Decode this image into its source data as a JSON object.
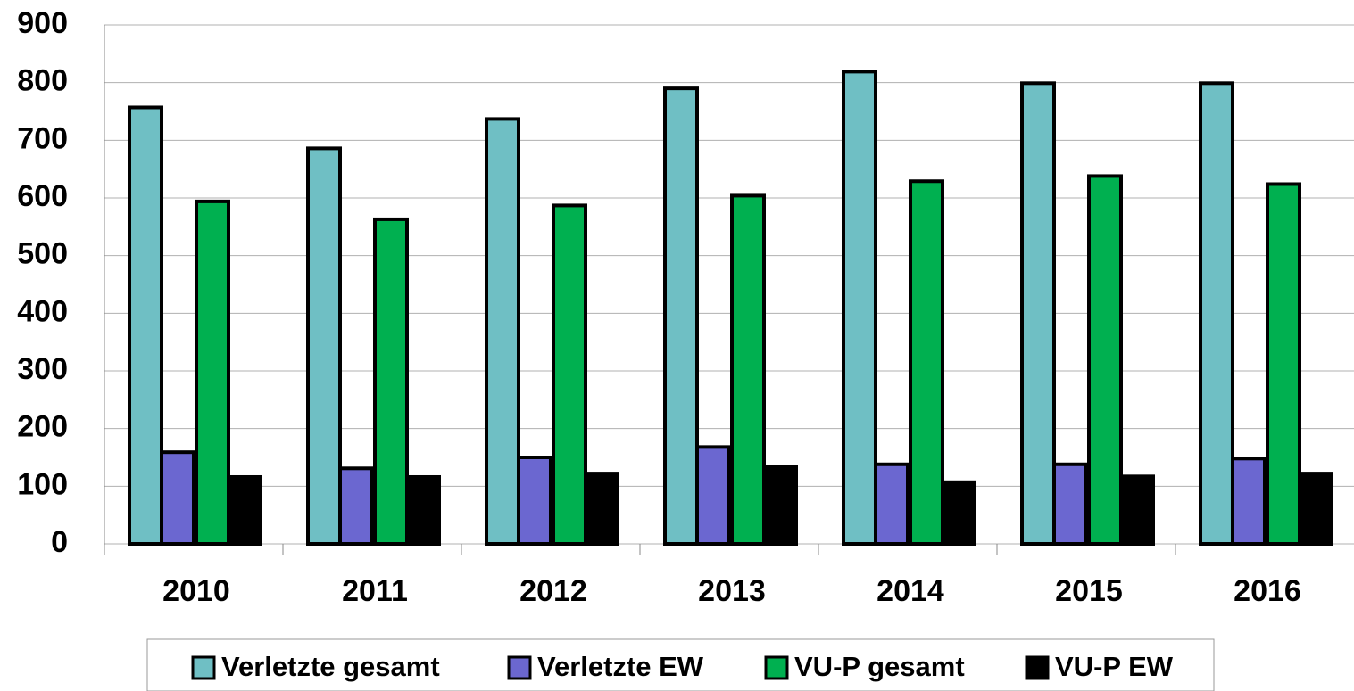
{
  "chart_data": {
    "type": "bar",
    "categories": [
      "2010",
      "2011",
      "2012",
      "2013",
      "2014",
      "2015",
      "2016"
    ],
    "series": [
      {
        "name": "Verletzte gesamt",
        "color": "#6fbfc4",
        "values": [
          757,
          686,
          737,
          790,
          819,
          799,
          799
        ]
      },
      {
        "name": "Verletzte EW",
        "color": "#6b67d0",
        "values": [
          159,
          131,
          150,
          168,
          138,
          138,
          148
        ]
      },
      {
        "name": "VU-P gesamt",
        "color": "#00b050",
        "values": [
          594,
          563,
          587,
          604,
          629,
          638,
          624
        ]
      },
      {
        "name": "VU-P EW",
        "color": "#000000",
        "values": [
          116,
          116,
          122,
          133,
          107,
          117,
          122
        ]
      }
    ],
    "ylim": [
      0,
      900
    ],
    "yticks": [
      0,
      100,
      200,
      300,
      400,
      500,
      600,
      700,
      800,
      900
    ],
    "grid": true
  }
}
